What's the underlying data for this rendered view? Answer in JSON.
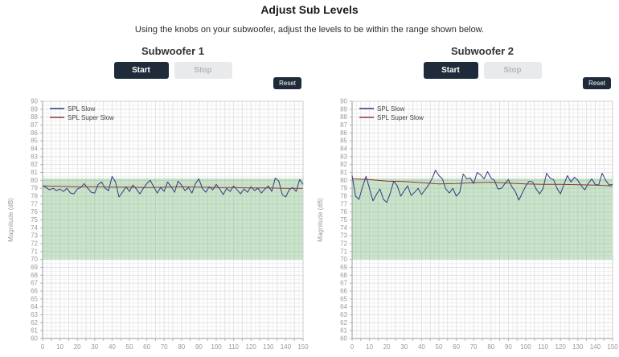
{
  "page": {
    "title": "Adjust Sub Levels",
    "subtitle": "Using the knobs on your subwoofer, adjust the levels to be within the range shown below."
  },
  "colors": {
    "button_dark": "#1f2b3a",
    "button_disabled_bg": "#e9eaec",
    "button_disabled_text": "#b4b7ba",
    "target_band_green": "rgba(92,170,96,0.32)",
    "spl_slow_blue": "#2e3d80",
    "spl_super_slow_red": "#8b3838",
    "grid_major": "#e2e2e2",
    "grid_minor": "#f0f0f0",
    "axis_text": "#9a9a9a"
  },
  "panels": [
    {
      "heading": "Subwoofer 1",
      "start_label": "Start",
      "stop_label": "Stop",
      "reset_label": "Reset"
    },
    {
      "heading": "Subwoofer 2",
      "start_label": "Start",
      "stop_label": "Stop",
      "reset_label": "Reset"
    }
  ],
  "chart_data": [
    {
      "type": "line",
      "title": "Subwoofer 1",
      "xlabel": "",
      "ylabel": "Magnitude (dB)",
      "xlim": [
        0,
        150
      ],
      "ylim": [
        60,
        90
      ],
      "x_tick_label_every": 10,
      "y_tick_label_every": 1,
      "grid": true,
      "legend_position": "top-left",
      "target_band": {
        "from": 70,
        "to": 80.25
      },
      "series": [
        {
          "name": "SPL Slow",
          "color": "#2e3d80",
          "x_start": 0,
          "x_step": 2,
          "values": [
            79.3,
            79.1,
            78.8,
            79.0,
            78.7,
            78.9,
            78.6,
            79.0,
            78.4,
            78.3,
            78.9,
            79.1,
            79.6,
            79.0,
            78.5,
            78.4,
            79.5,
            79.8,
            79.0,
            78.7,
            80.5,
            79.8,
            77.9,
            78.5,
            79.2,
            78.6,
            79.4,
            78.9,
            78.3,
            79.0,
            79.6,
            80.0,
            79.2,
            78.4,
            79.1,
            78.6,
            79.8,
            79.2,
            78.5,
            79.9,
            79.4,
            78.7,
            79.1,
            78.4,
            79.6,
            80.2,
            79.0,
            78.5,
            79.2,
            78.8,
            79.5,
            78.9,
            78.2,
            79.0,
            78.6,
            79.3,
            78.8,
            78.3,
            78.9,
            78.5,
            79.2,
            78.7,
            79.0,
            78.4,
            78.9,
            79.3,
            78.6,
            80.3,
            79.9,
            78.2,
            77.9,
            78.8,
            79.1,
            78.6,
            80.1,
            79.5
          ]
        },
        {
          "name": "SPL Super Slow",
          "color": "#8b3838",
          "x_start": 0,
          "x_step": 10,
          "values": [
            79.3,
            79.25,
            79.2,
            79.2,
            79.15,
            79.15,
            79.1,
            79.15,
            79.2,
            79.15,
            79.1,
            79.1,
            79.05,
            79.05,
            79.0,
            79.0
          ]
        }
      ]
    },
    {
      "type": "line",
      "title": "Subwoofer 2",
      "xlabel": "",
      "ylabel": "Magnitude (dB)",
      "xlim": [
        0,
        150
      ],
      "ylim": [
        60,
        90
      ],
      "x_tick_label_every": 10,
      "y_tick_label_every": 1,
      "grid": true,
      "legend_position": "top-left",
      "target_band": {
        "from": 70,
        "to": 80.25
      },
      "series": [
        {
          "name": "SPL Slow",
          "color": "#2e3d80",
          "x_start": 0,
          "x_step": 2,
          "values": [
            80.6,
            78.0,
            77.6,
            79.2,
            80.5,
            79.0,
            77.4,
            78.2,
            78.9,
            77.6,
            77.2,
            78.4,
            79.9,
            79.3,
            78.0,
            78.7,
            79.3,
            78.1,
            78.5,
            79.0,
            78.2,
            78.8,
            79.4,
            80.2,
            81.3,
            80.6,
            80.2,
            78.9,
            78.4,
            79.0,
            78.0,
            78.5,
            80.8,
            80.2,
            80.3,
            79.6,
            81.0,
            80.7,
            80.2,
            81.1,
            80.3,
            80.0,
            78.9,
            79.0,
            79.6,
            80.1,
            79.2,
            78.6,
            77.5,
            78.4,
            79.3,
            79.9,
            79.8,
            78.9,
            78.3,
            79.0,
            80.9,
            80.3,
            80.1,
            79.0,
            78.3,
            79.5,
            80.6,
            79.8,
            80.4,
            80.0,
            79.3,
            78.8,
            79.6,
            80.2,
            79.5,
            79.4,
            80.9,
            80.0,
            79.4,
            79.5
          ]
        },
        {
          "name": "SPL Super Slow",
          "color": "#8b3838",
          "x_start": 0,
          "x_step": 10,
          "values": [
            80.2,
            80.1,
            79.9,
            79.85,
            79.7,
            79.55,
            79.6,
            79.7,
            79.75,
            79.65,
            79.55,
            79.5,
            79.5,
            79.45,
            79.4,
            79.3
          ]
        }
      ]
    }
  ]
}
